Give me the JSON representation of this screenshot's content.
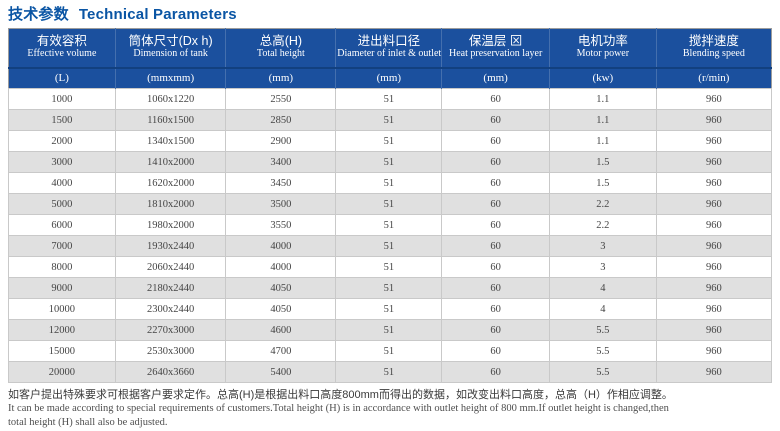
{
  "title": {
    "zh": "技术参数",
    "en": "Technical Parameters"
  },
  "colors": {
    "title_blue": "#0a55a4",
    "header_bg": "#1b509e",
    "header_divider": "#446fae",
    "row_alt_gray": "#e0e0e0",
    "body_border": "#c9c9c9"
  },
  "table": {
    "columns": [
      {
        "zh": "有效容积",
        "en": "Effective volume",
        "unit": "(L)"
      },
      {
        "zh": "筒体尺寸(Dx h)",
        "en": "Dimension of tank",
        "unit": "(mmxmm)"
      },
      {
        "zh": "总高(H)",
        "en": "Total height",
        "unit": "(mm)"
      },
      {
        "zh": "进出料口径",
        "en": "Diameter of inlet & outlet",
        "unit": "(mm)"
      },
      {
        "zh": "保温层 ⊠",
        "en": "Heat preservation layer",
        "unit": "(mm)"
      },
      {
        "zh": "电机功率",
        "en": "Motor power",
        "unit": "(kw)"
      },
      {
        "zh": "搅拌速度",
        "en": "Blending speed",
        "unit": "(r/min)"
      }
    ],
    "rows": [
      [
        "1000",
        "1060x1220",
        "2550",
        "51",
        "60",
        "1.1",
        "960"
      ],
      [
        "1500",
        "1160x1500",
        "2850",
        "51",
        "60",
        "1.1",
        "960"
      ],
      [
        "2000",
        "1340x1500",
        "2900",
        "51",
        "60",
        "1.1",
        "960"
      ],
      [
        "3000",
        "1410x2000",
        "3400",
        "51",
        "60",
        "1.5",
        "960"
      ],
      [
        "4000",
        "1620x2000",
        "3450",
        "51",
        "60",
        "1.5",
        "960"
      ],
      [
        "5000",
        "1810x2000",
        "3500",
        "51",
        "60",
        "2.2",
        "960"
      ],
      [
        "6000",
        "1980x2000",
        "3550",
        "51",
        "60",
        "2.2",
        "960"
      ],
      [
        "7000",
        "1930x2440",
        "4000",
        "51",
        "60",
        "3",
        "960"
      ],
      [
        "8000",
        "2060x2440",
        "4000",
        "51",
        "60",
        "3",
        "960"
      ],
      [
        "9000",
        "2180x2440",
        "4050",
        "51",
        "60",
        "4",
        "960"
      ],
      [
        "10000",
        "2300x2440",
        "4050",
        "51",
        "60",
        "4",
        "960"
      ],
      [
        "12000",
        "2270x3000",
        "4600",
        "51",
        "60",
        "5.5",
        "960"
      ],
      [
        "15000",
        "2530x3000",
        "4700",
        "51",
        "60",
        "5.5",
        "960"
      ],
      [
        "20000",
        "2640x3660",
        "5400",
        "51",
        "60",
        "5.5",
        "960"
      ]
    ]
  },
  "footnote": {
    "zh": "如客户提出特殊要求可根据客户要求定作。总高(H)是根据出料口高度800mm而得出的数据，如改变出料口高度，总高（H）作相应调整。",
    "en_line1": "It can be made according to special requirements of customers.Total height (H) is in accordance with outlet height of 800 mm.If outlet height is changed,then",
    "en_line2": "total height (H) shall also be adjusted."
  }
}
